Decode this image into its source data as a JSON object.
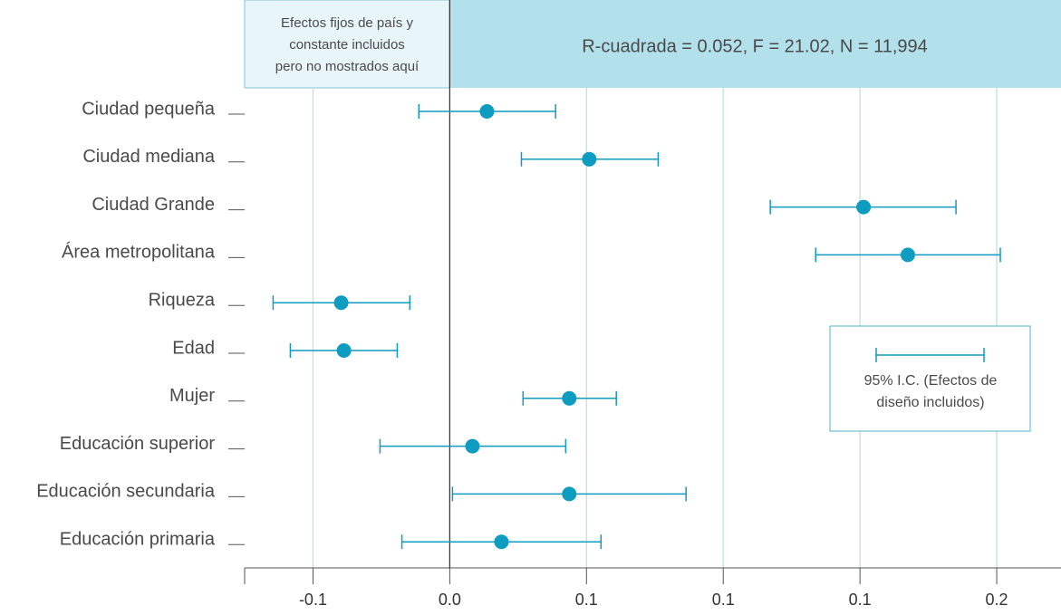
{
  "chart_data": {
    "type": "coefplot",
    "note": [
      "Efectos fijos de país y",
      "constante incluidos",
      "pero no mostrados aquí"
    ],
    "stats": "R-cuadrada = 0.052, F = 21.02, N = 11,994",
    "legend_label": [
      "95% I.C. (Efectos de",
      "diseño incluidos)"
    ],
    "categories": [
      "Ciudad pequeña",
      "Ciudad mediana",
      "Ciudad Grande",
      "Área metropolitana",
      "Riqueza",
      "Edad",
      "Mujer",
      "Educación superior",
      "Educación secundaria",
      "Educación primaria"
    ],
    "values": [
      0.0136,
      0.051,
      0.1513,
      0.1675,
      -0.0397,
      -0.0387,
      0.0437,
      0.0083,
      0.0437,
      0.0189
    ],
    "ci_low": [
      -0.0113,
      0.0262,
      0.1172,
      0.1338,
      -0.0646,
      -0.0583,
      0.0268,
      -0.0255,
      0.001,
      -0.0175
    ],
    "ci_high": [
      0.0387,
      0.0762,
      0.1851,
      0.2013,
      -0.0146,
      -0.0192,
      0.0609,
      0.0424,
      0.0864,
      0.0553
    ],
    "color": "#0e9cc1",
    "xlim": [
      -0.075,
      0.2235
    ],
    "xticks": [
      {
        "value": -0.05,
        "label": "-0.1"
      },
      {
        "value": 0,
        "label": "0.0"
      },
      {
        "value": 0.05,
        "label": "0.1"
      },
      0.1,
      {
        "value": 0.15,
        "label": "0.1"
      },
      0.2
    ],
    "grid": true
  }
}
